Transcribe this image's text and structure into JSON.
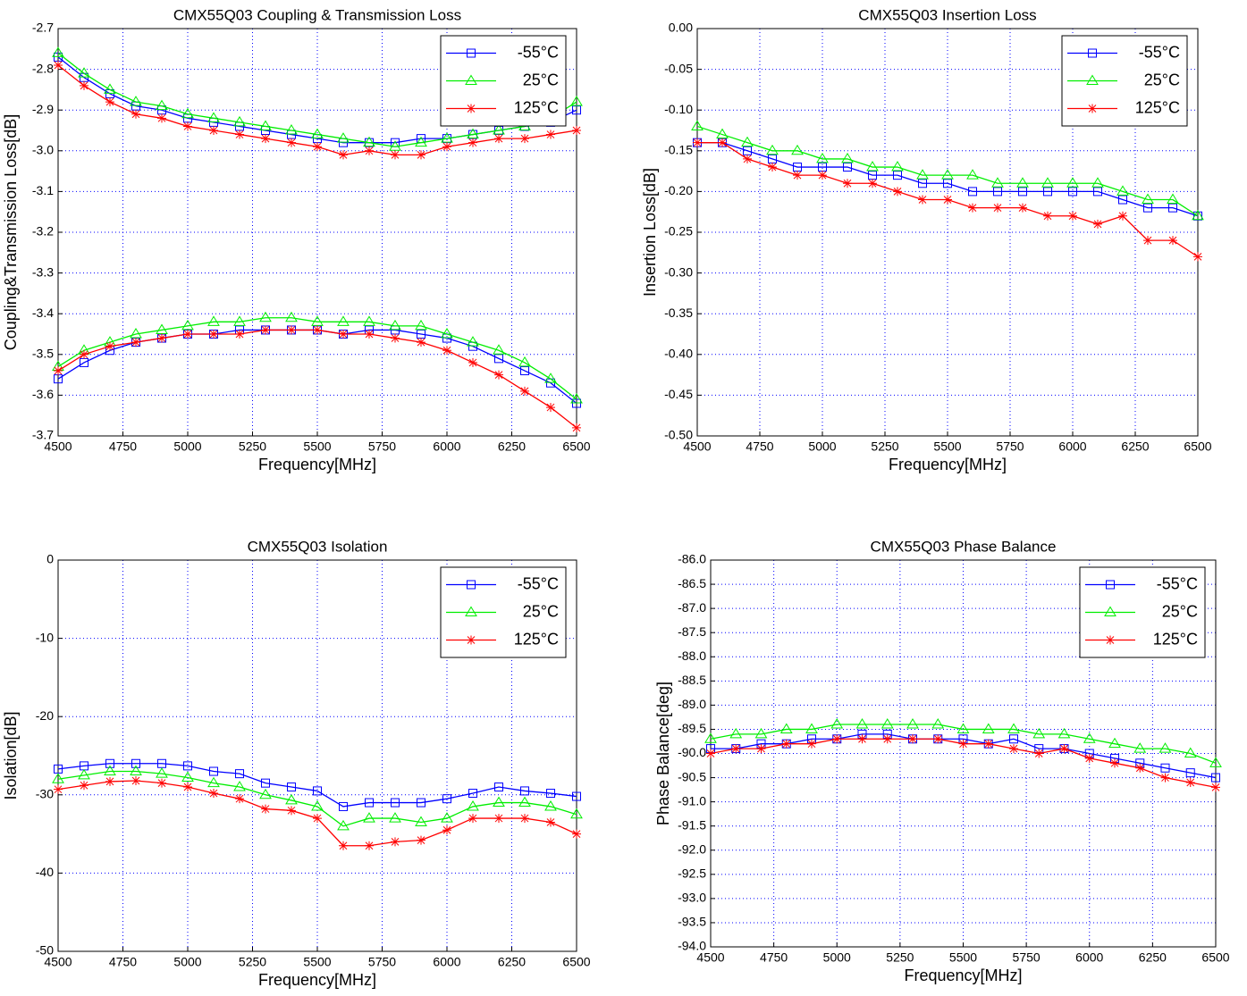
{
  "chart_data": [
    {
      "type": "line",
      "title": "CMX55Q03 Coupling & Transmission Loss",
      "xlabel": "Frequency[MHz]",
      "ylabel": "Coupling&Transmission Loss[dB]",
      "x": [
        4500,
        4600,
        4700,
        4800,
        4900,
        5000,
        5100,
        5200,
        5300,
        5400,
        5500,
        5600,
        5700,
        5800,
        5900,
        6000,
        6100,
        6200,
        6300,
        6400,
        6500
      ],
      "xlim": [
        4500,
        6500
      ],
      "xticks": [
        4500,
        4750,
        5000,
        5250,
        5500,
        5750,
        6000,
        6250,
        6500
      ],
      "ylim": [
        -3.7,
        -2.7
      ],
      "yticks": [
        -2.7,
        -2.8,
        -2.9,
        {
          "value": -3,
          "label": "-3.0"
        },
        -3.1,
        -3.2,
        -3.3,
        -3.4,
        -3.5,
        -3.6,
        -3.7
      ],
      "grid": true,
      "legend": "upper right",
      "series": [
        {
          "name": "-55°C",
          "color": "#0000ff",
          "marker": "square",
          "values": [
            -2.77,
            -2.82,
            -2.86,
            -2.89,
            -2.9,
            -2.92,
            -2.93,
            -2.94,
            -2.95,
            -2.96,
            -2.97,
            -2.98,
            -2.98,
            -2.98,
            -2.97,
            -2.97,
            -2.96,
            -2.95,
            -2.94,
            -2.93,
            -2.9
          ],
          "values2": [
            -3.56,
            -3.52,
            -3.49,
            -3.47,
            -3.46,
            -3.45,
            -3.45,
            -3.44,
            -3.44,
            -3.44,
            -3.44,
            -3.45,
            -3.44,
            -3.44,
            -3.45,
            -3.46,
            -3.48,
            -3.51,
            -3.54,
            -3.57,
            -3.62
          ]
        },
        {
          "name": "25°C",
          "color": "#00ee00",
          "marker": "triangle",
          "values": [
            -2.76,
            -2.81,
            -2.85,
            -2.88,
            -2.89,
            -2.91,
            -2.92,
            -2.93,
            -2.94,
            -2.95,
            -2.96,
            -2.97,
            -2.98,
            -2.99,
            -2.98,
            -2.97,
            -2.96,
            -2.95,
            -2.94,
            -2.92,
            -2.88
          ],
          "values2": [
            -3.53,
            -3.49,
            -3.47,
            -3.45,
            -3.44,
            -3.43,
            -3.42,
            -3.42,
            -3.41,
            -3.41,
            -3.42,
            -3.42,
            -3.42,
            -3.43,
            -3.43,
            -3.45,
            -3.47,
            -3.49,
            -3.52,
            -3.56,
            -3.61
          ]
        },
        {
          "name": "125°C",
          "color": "#ff0000",
          "marker": "asterisk",
          "values": [
            -2.79,
            -2.84,
            -2.88,
            -2.91,
            -2.92,
            -2.94,
            -2.95,
            -2.96,
            -2.97,
            -2.98,
            -2.99,
            -3.01,
            -3.0,
            -3.01,
            -3.01,
            -2.99,
            -2.98,
            -2.97,
            -2.97,
            -2.96,
            -2.95
          ],
          "values2": [
            -3.54,
            -3.5,
            -3.48,
            -3.47,
            -3.46,
            -3.45,
            -3.45,
            -3.45,
            -3.44,
            -3.44,
            -3.44,
            -3.45,
            -3.45,
            -3.46,
            -3.47,
            -3.49,
            -3.52,
            -3.55,
            -3.59,
            -3.63,
            -3.68
          ]
        }
      ]
    },
    {
      "type": "line",
      "title": "CMX55Q03 Insertion Loss",
      "xlabel": "Frequency[MHz]",
      "ylabel": "Insertion Loss[dB]",
      "x": [
        4500,
        4600,
        4700,
        4800,
        4900,
        5000,
        5100,
        5200,
        5300,
        5400,
        5500,
        5600,
        5700,
        5800,
        5900,
        6000,
        6100,
        6200,
        6300,
        6400,
        6500
      ],
      "xlim": [
        4500,
        6500
      ],
      "xticks": [
        4500,
        4750,
        5000,
        5250,
        5500,
        5750,
        6000,
        6250,
        6500
      ],
      "ylim": [
        -0.5,
        0
      ],
      "yticks": [
        {
          "value": 0,
          "label": "0.00"
        },
        -0.05,
        {
          "value": -0.1,
          "label": "-0.10"
        },
        -0.15,
        {
          "value": -0.2,
          "label": "-0.20"
        },
        -0.25,
        {
          "value": -0.3,
          "label": "-0.30"
        },
        -0.35,
        {
          "value": -0.4,
          "label": "-0.40"
        },
        -0.45,
        {
          "value": -0.5,
          "label": "-0.50"
        }
      ],
      "grid": true,
      "legend": "upper right",
      "series": [
        {
          "name": "-55°C",
          "color": "#0000ff",
          "marker": "square",
          "values": [
            -0.14,
            -0.14,
            -0.15,
            -0.16,
            -0.17,
            -0.17,
            -0.17,
            -0.18,
            -0.18,
            -0.19,
            -0.19,
            -0.2,
            -0.2,
            -0.2,
            -0.2,
            -0.2,
            -0.2,
            -0.21,
            -0.22,
            -0.22,
            -0.23
          ]
        },
        {
          "name": "25°C",
          "color": "#00ee00",
          "marker": "triangle",
          "values": [
            -0.12,
            -0.13,
            -0.14,
            -0.15,
            -0.15,
            -0.16,
            -0.16,
            -0.17,
            -0.17,
            -0.18,
            -0.18,
            -0.18,
            -0.19,
            -0.19,
            -0.19,
            -0.19,
            -0.19,
            -0.2,
            -0.21,
            -0.21,
            -0.23
          ]
        },
        {
          "name": "125°C",
          "color": "#ff0000",
          "marker": "asterisk",
          "values": [
            -0.14,
            -0.14,
            -0.16,
            -0.17,
            -0.18,
            -0.18,
            -0.19,
            -0.19,
            -0.2,
            -0.21,
            -0.21,
            -0.22,
            -0.22,
            -0.22,
            -0.23,
            -0.23,
            -0.24,
            -0.23,
            -0.26,
            -0.26,
            -0.28
          ]
        }
      ]
    },
    {
      "type": "line",
      "title": "CMX55Q03 Isolation",
      "xlabel": "Frequency[MHz]",
      "ylabel": "Isolation[dB]",
      "x": [
        4500,
        4600,
        4700,
        4800,
        4900,
        5000,
        5100,
        5200,
        5300,
        5400,
        5500,
        5600,
        5700,
        5800,
        5900,
        6000,
        6100,
        6200,
        6300,
        6400,
        6500
      ],
      "xlim": [
        4500,
        6500
      ],
      "xticks": [
        4500,
        4750,
        5000,
        5250,
        5500,
        5750,
        6000,
        6250,
        6500
      ],
      "ylim": [
        -50,
        0
      ],
      "yticks": [
        0,
        -10,
        -20,
        -30,
        -40,
        -50
      ],
      "grid": true,
      "legend": "upper right",
      "series": [
        {
          "name": "-55°C",
          "color": "#0000ff",
          "marker": "square",
          "values": [
            -26.7,
            -26.3,
            -26,
            -26,
            -26,
            -26.3,
            -27,
            -27.3,
            -28.5,
            -29,
            -29.5,
            -31.5,
            -31,
            -31,
            -31,
            -30.5,
            -29.8,
            -29,
            -29.5,
            -29.8,
            -30.2
          ]
        },
        {
          "name": "25°C",
          "color": "#00ee00",
          "marker": "triangle",
          "values": [
            -28,
            -27.5,
            -27,
            -27,
            -27.3,
            -27.8,
            -28.5,
            -29,
            -30,
            -30.7,
            -31.5,
            -34,
            -33,
            -33,
            -33.5,
            -33,
            -31.5,
            -31,
            -31,
            -31.5,
            -32.5
          ]
        },
        {
          "name": "125°C",
          "color": "#ff0000",
          "marker": "asterisk",
          "values": [
            -29.3,
            -28.8,
            -28.3,
            -28.2,
            -28.5,
            -29,
            -29.8,
            -30.5,
            -31.8,
            -32,
            -33,
            -36.5,
            -36.5,
            -36,
            -35.8,
            -34.5,
            -33,
            -33,
            -33,
            -33.5,
            -35
          ]
        }
      ]
    },
    {
      "type": "line",
      "title": "CMX55Q03 Phase Balance",
      "xlabel": "Frequency[MHz]",
      "ylabel": "Phase Balance[deg]",
      "x": [
        4500,
        4600,
        4700,
        4800,
        4900,
        5000,
        5100,
        5200,
        5300,
        5400,
        5500,
        5600,
        5700,
        5800,
        5900,
        6000,
        6100,
        6200,
        6300,
        6400,
        6500
      ],
      "xlim": [
        4500,
        6500
      ],
      "xticks": [
        4500,
        4750,
        5000,
        5250,
        5500,
        5750,
        6000,
        6250,
        6500
      ],
      "ylim": [
        -94,
        -86
      ],
      "yticks": [
        {
          "value": -86,
          "label": "-86.0"
        },
        -86.5,
        {
          "value": -87,
          "label": "-87.0"
        },
        -87.5,
        {
          "value": -88,
          "label": "-88.0"
        },
        -88.5,
        {
          "value": -89,
          "label": "-89.0"
        },
        -89.5,
        {
          "value": -90,
          "label": "-90.0"
        },
        -90.5,
        {
          "value": -91,
          "label": "-91.0"
        },
        -91.5,
        {
          "value": -92,
          "label": "-92.0"
        },
        -92.5,
        {
          "value": -93,
          "label": "-93.0"
        },
        -93.5,
        {
          "value": -94,
          "label": "-94.0"
        }
      ],
      "grid": true,
      "legend": "upper right",
      "series": [
        {
          "name": "-55°C",
          "color": "#0000ff",
          "marker": "square",
          "values": [
            -89.9,
            -89.9,
            -89.8,
            -89.8,
            -89.7,
            -89.7,
            -89.6,
            -89.6,
            -89.7,
            -89.7,
            -89.7,
            -89.8,
            -89.7,
            -89.9,
            -89.9,
            -90,
            -90.1,
            -90.2,
            -90.3,
            -90.4,
            -90.5
          ]
        },
        {
          "name": "25°C",
          "color": "#00ee00",
          "marker": "triangle",
          "values": [
            -89.7,
            -89.6,
            -89.6,
            -89.5,
            -89.5,
            -89.4,
            -89.4,
            -89.4,
            -89.4,
            -89.4,
            -89.5,
            -89.5,
            -89.5,
            -89.6,
            -89.6,
            -89.7,
            -89.8,
            -89.9,
            -89.9,
            -90,
            -90.2
          ]
        },
        {
          "name": "125°C",
          "color": "#ff0000",
          "marker": "asterisk",
          "values": [
            -90,
            -89.9,
            -89.9,
            -89.8,
            -89.8,
            -89.7,
            -89.7,
            -89.7,
            -89.7,
            -89.7,
            -89.8,
            -89.8,
            -89.9,
            -90,
            -89.9,
            -90.1,
            -90.2,
            -90.3,
            -90.5,
            -90.6,
            -90.7
          ]
        }
      ]
    }
  ]
}
